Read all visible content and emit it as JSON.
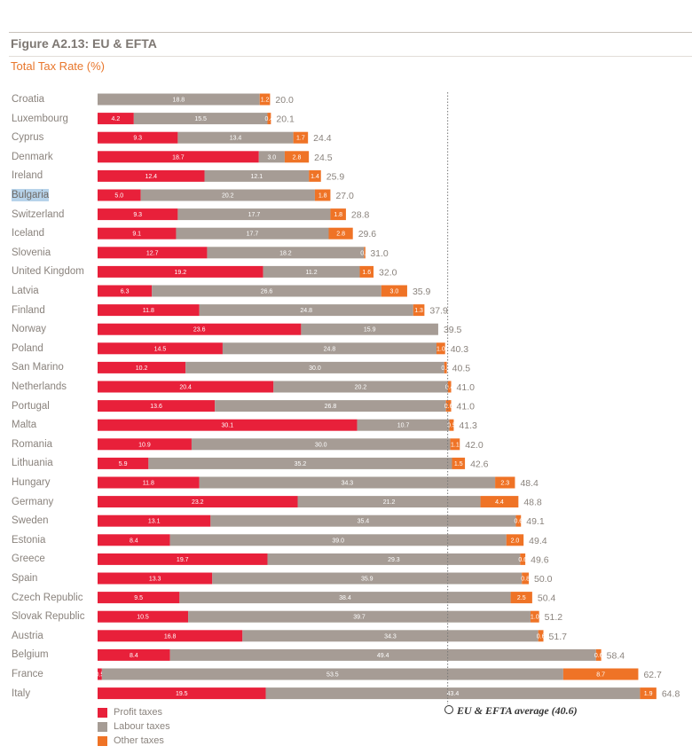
{
  "figure": {
    "title": "Figure A2.13: EU & EFTA",
    "subtitle": "Total Tax Rate (%)"
  },
  "colors": {
    "profit": "#e8203a",
    "labour": "#a69c95",
    "other": "#ef7326",
    "average_line": "#777777"
  },
  "chart_data": {
    "type": "bar",
    "orientation": "horizontal",
    "stacked": true,
    "title": "Figure A2.13: EU & EFTA",
    "subtitle": "Total Tax Rate (%)",
    "xlim": [
      0,
      70
    ],
    "categories": [
      "Croatia",
      "Luxembourg",
      "Cyprus",
      "Denmark",
      "Ireland",
      "Bulgaria",
      "Switzerland",
      "Iceland",
      "Slovenia",
      "United Kingdom",
      "Latvia",
      "Finland",
      "Norway",
      "Poland",
      "San Marino",
      "Netherlands",
      "Portugal",
      "Malta",
      "Romania",
      "Lithuania",
      "Hungary",
      "Germany",
      "Sweden",
      "Estonia",
      "Greece",
      "Spain",
      "Czech Republic",
      "Slovak Republic",
      "Austria",
      "Belgium",
      "France",
      "Italy"
    ],
    "highlighted_category": "Bulgaria",
    "series": [
      {
        "name": "Profit taxes",
        "key": "profit",
        "values": [
          null,
          4.2,
          9.3,
          18.7,
          12.4,
          5.0,
          9.3,
          9.1,
          12.7,
          19.2,
          6.3,
          11.8,
          23.6,
          14.5,
          10.2,
          20.4,
          13.6,
          30.1,
          10.9,
          5.9,
          11.8,
          23.2,
          13.1,
          8.4,
          19.7,
          13.3,
          9.5,
          10.5,
          16.8,
          8.4,
          0.5,
          19.5
        ]
      },
      {
        "name": "Labour taxes",
        "key": "labour",
        "values": [
          18.8,
          15.5,
          13.4,
          3.0,
          12.1,
          20.2,
          17.7,
          17.7,
          18.2,
          11.2,
          26.6,
          24.8,
          15.9,
          24.8,
          30.0,
          20.2,
          26.8,
          10.7,
          30.0,
          35.2,
          34.3,
          21.2,
          35.4,
          39.0,
          29.3,
          35.9,
          38.4,
          39.7,
          34.3,
          49.4,
          53.5,
          43.4
        ]
      },
      {
        "name": "Other taxes",
        "key": "other",
        "values": [
          1.2,
          0.4,
          1.7,
          2.8,
          1.4,
          1.8,
          1.8,
          2.8,
          0.1,
          1.6,
          3.0,
          1.3,
          null,
          1.0,
          0.3,
          0.4,
          0.6,
          0.5,
          1.1,
          1.5,
          2.3,
          4.4,
          0.6,
          2.0,
          0.6,
          0.8,
          2.5,
          1.0,
          0.6,
          0.6,
          8.7,
          1.9
        ]
      }
    ],
    "segment_labels": {
      "profit": [
        null,
        "4.2",
        "9.3",
        "18.7",
        "12.4",
        "5.0",
        "9.3",
        "9.1",
        "12.7",
        "19.2",
        "6.3",
        "11.8",
        "23.6",
        "14.5",
        "10.2",
        "20.4",
        "13.6",
        "30.1",
        "10.9",
        "5.9",
        "11.8",
        "23.2",
        "13.1",
        "8.4",
        "19.7",
        "13.3",
        "9.5",
        "10.5",
        "16.8",
        "8.4",
        "0.5",
        "19.5"
      ],
      "labour": [
        "18.8",
        "15.5",
        "13.4",
        "3.0",
        "12.1",
        "20.2",
        "17.7",
        "17.7",
        "18.2",
        "11.2",
        "26.6",
        "24.8",
        "15.9",
        "24.8",
        "30.0",
        "20.2",
        "26.8",
        "10.7",
        "30.0",
        "35.2",
        "34.3",
        "21.2",
        "35.4",
        "39.0",
        "29.3",
        "35.9",
        "38.4",
        "39.7",
        "34.3",
        "49.4",
        "53.5",
        "43.4"
      ],
      "other": [
        "1.2",
        "0.4",
        "1.7",
        "2.8",
        "1.4",
        "1.8",
        "1.8",
        "2.8",
        "0.1",
        "1.6",
        "3.0",
        "1.3",
        null,
        "1.0",
        "0.3",
        "0.4",
        "0.6",
        "0.5",
        "1.1",
        "1.5",
        "2.3",
        "4.4",
        "0.6",
        "2.0",
        "0.6",
        "0.8",
        "2.5",
        "1.0",
        "0.6",
        "0.6",
        "8.7",
        "1.9"
      ]
    },
    "totals": [
      20.0,
      20.1,
      24.4,
      24.5,
      25.9,
      27.0,
      28.8,
      29.6,
      31.0,
      32.0,
      35.9,
      37.9,
      39.5,
      40.3,
      40.5,
      41.0,
      41.0,
      41.3,
      42.0,
      42.6,
      48.4,
      48.8,
      49.1,
      49.4,
      49.6,
      50.0,
      50.4,
      51.2,
      51.7,
      58.4,
      62.7,
      64.8
    ],
    "totals_labels": [
      "20.0",
      "20.1",
      "24.4",
      "24.5",
      "25.9",
      "27.0",
      "28.8",
      "29.6",
      "31.0",
      "32.0",
      "35.9",
      "37.9",
      "39.5",
      "40.3",
      "40.5",
      "41.0",
      "41.0",
      "41.3",
      "42.0",
      "42.6",
      "48.4",
      "48.8",
      "49.1",
      "49.4",
      "49.6",
      "50.0",
      "50.4",
      "51.2",
      "51.7",
      "58.4",
      "62.7",
      "64.8"
    ],
    "reference_line": {
      "value": 40.6,
      "label": "EU & EFTA average (40.6)"
    },
    "legend": [
      "Profit taxes",
      "Labour taxes",
      "Other taxes"
    ]
  }
}
